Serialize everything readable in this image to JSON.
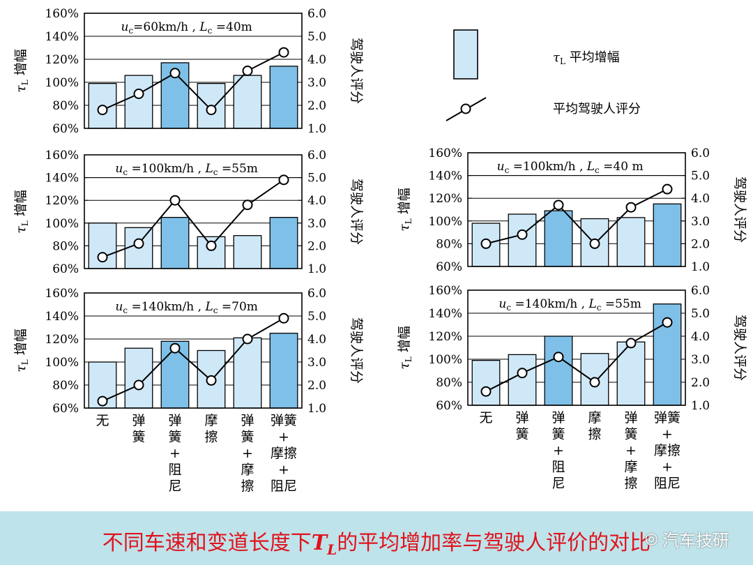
{
  "chart_data": [
    {
      "type": "bar",
      "annotation": {
        "u": "u",
        "sub": "c",
        "rest": "=60km/h , ",
        "L": "L",
        "Lsub": "c",
        "Lrest": " =40m"
      },
      "ylabel_left": {
        "tau": "τ",
        "sub": "L",
        "text": " 增幅"
      },
      "ylabel_right": "驾驶人评分",
      "yticks_left": [
        "60%",
        "80%",
        "100%",
        "120%",
        "140%",
        "160%"
      ],
      "yticks_right": [
        "1.0",
        "2.0",
        "3.0",
        "4.0",
        "5.0",
        "6.0"
      ],
      "ylim": [
        60,
        160
      ],
      "y2lim": [
        1.0,
        6.0
      ],
      "categories": [
        "无",
        "弹簧",
        "弹簧+阻尼",
        "摩擦",
        "弹簧+摩擦",
        "弹簧+摩擦+阻尼"
      ],
      "series": [
        {
          "name": "τL 平均增幅",
          "kind": "bar",
          "values": [
            99,
            106,
            117,
            99,
            106,
            114
          ]
        },
        {
          "name": "平均驾驶人评分",
          "kind": "line",
          "values": [
            1.8,
            2.5,
            3.4,
            1.8,
            3.5,
            4.3
          ]
        }
      ]
    },
    {
      "type": "bar",
      "annotation": {
        "u": "u",
        "sub": "c",
        "rest": " =100km/h , ",
        "L": "L",
        "Lsub": "c",
        "Lrest": " =55m"
      },
      "ylabel_left": {
        "tau": "τ",
        "sub": "L",
        "text": " 增幅"
      },
      "ylabel_right": "驾驶人评分",
      "yticks_left": [
        "60%",
        "80%",
        "100%",
        "120%",
        "140%",
        "160%"
      ],
      "yticks_right": [
        "1.0",
        "2.0",
        "3.0",
        "4.0",
        "5.0",
        "6.0"
      ],
      "ylim": [
        60,
        160
      ],
      "y2lim": [
        1.0,
        6.0
      ],
      "categories": [
        "无",
        "弹簧",
        "弹簧+阻尼",
        "摩擦",
        "弹簧+摩擦",
        "弹簧+摩擦+阻尼"
      ],
      "series": [
        {
          "name": "τL 平均增幅",
          "kind": "bar",
          "values": [
            100,
            96,
            105,
            88,
            89,
            105
          ]
        },
        {
          "name": "平均驾驶人评分",
          "kind": "line",
          "values": [
            1.5,
            2.1,
            4.0,
            2.0,
            3.8,
            4.9
          ]
        }
      ]
    },
    {
      "type": "bar",
      "annotation": {
        "u": "u",
        "sub": "c",
        "rest": " =140km/h , ",
        "L": "L",
        "Lsub": "c",
        "Lrest": " =70m"
      },
      "ylabel_left": {
        "tau": "τ",
        "sub": "L",
        "text": " 增幅"
      },
      "ylabel_right": "驾驶人评分",
      "yticks_left": [
        "60%",
        "80%",
        "100%",
        "120%",
        "140%",
        "160%"
      ],
      "yticks_right": [
        "1.0",
        "2.0",
        "3.0",
        "4.0",
        "5.0",
        "6.0"
      ],
      "ylim": [
        60,
        160
      ],
      "y2lim": [
        1.0,
        6.0
      ],
      "categories": [
        "无",
        "弹簧",
        "弹簧+阻尼",
        "摩擦",
        "弹簧+摩擦",
        "弹簧+摩擦+阻尼"
      ],
      "series": [
        {
          "name": "τL 平均增幅",
          "kind": "bar",
          "values": [
            100,
            112,
            118,
            110,
            121,
            125
          ]
        },
        {
          "name": "平均驾驶人评分",
          "kind": "line",
          "values": [
            1.3,
            2.0,
            3.6,
            2.2,
            4.0,
            4.9
          ]
        }
      ]
    },
    {
      "type": "bar",
      "annotation": {
        "u": "u",
        "sub": "c",
        "rest": " =100km/h , ",
        "L": "L",
        "Lsub": "c",
        "Lrest": " =40 m"
      },
      "ylabel_left": {
        "tau": "τ",
        "sub": "L",
        "text": " 增幅"
      },
      "ylabel_right": "驾驶人评分",
      "yticks_left": [
        "60%",
        "80%",
        "100%",
        "120%",
        "140%",
        "160%"
      ],
      "yticks_right": [
        "1.0",
        "2.0",
        "3.0",
        "4.0",
        "5.0",
        "6.0"
      ],
      "ylim": [
        60,
        160
      ],
      "y2lim": [
        1.0,
        6.0
      ],
      "categories": [
        "无",
        "弹簧",
        "弹簧+阻尼",
        "摩擦",
        "弹簧+摩擦",
        "弹簧+摩擦+阻尼"
      ],
      "series": [
        {
          "name": "τL 平均增幅",
          "kind": "bar",
          "values": [
            98,
            106,
            109,
            102,
            103,
            115
          ]
        },
        {
          "name": "平均驾驶人评分",
          "kind": "line",
          "values": [
            2.0,
            2.4,
            3.7,
            2.0,
            3.6,
            4.4
          ]
        }
      ]
    },
    {
      "type": "bar",
      "annotation": {
        "u": "u",
        "sub": "c",
        "rest": " =140km/h , ",
        "L": "L",
        "Lsub": "c",
        "Lrest": " =55m"
      },
      "ylabel_left": {
        "tau": "τ",
        "sub": "L",
        "text": " 增幅"
      },
      "ylabel_right": "驾驶人评分",
      "yticks_left": [
        "60%",
        "80%",
        "100%",
        "120%",
        "140%",
        "160%"
      ],
      "yticks_right": [
        "1.0",
        "2.0",
        "3.0",
        "4.0",
        "5.0",
        "6.0"
      ],
      "ylim": [
        60,
        160
      ],
      "y2lim": [
        1.0,
        6.0
      ],
      "categories": [
        "无",
        "弹簧",
        "弹簧+阻尼",
        "摩擦",
        "弹簧+摩擦",
        "弹簧+摩擦+阻尼"
      ],
      "series": [
        {
          "name": "τL 平均增幅",
          "kind": "bar",
          "values": [
            99,
            104,
            120,
            105,
            115,
            148
          ]
        },
        {
          "name": "平均驾驶人评分",
          "kind": "line",
          "values": [
            1.6,
            2.4,
            3.1,
            2.0,
            3.7,
            4.6
          ]
        }
      ]
    }
  ],
  "legend": {
    "bar_label": {
      "tau": "τ",
      "sub": "L",
      "text": " 平均增幅"
    },
    "line_label": "平均驾驶人评分"
  },
  "category_labels": [
    [
      "无"
    ],
    [
      "弹",
      "簧"
    ],
    [
      "弹",
      "簧",
      "+",
      "阻",
      "尼"
    ],
    [
      "摩",
      "擦"
    ],
    [
      "弹",
      "簧",
      "+",
      "摩",
      "擦"
    ],
    [
      "弹簧",
      "+",
      "摩擦",
      "+",
      "阻尼"
    ]
  ],
  "caption": {
    "pre": "不同车速和变道长度下",
    "tau": "T",
    "sub": "L",
    "post": "的平均增加率与驾驶人评价的对比"
  },
  "watermark": "汽车技研",
  "colors": {
    "bar_light": "#cfe8f8",
    "bar_dark": "#7fc0e8",
    "line": "#000000",
    "caption": "#e0131d",
    "caption_bg": "#bfe3ea"
  }
}
